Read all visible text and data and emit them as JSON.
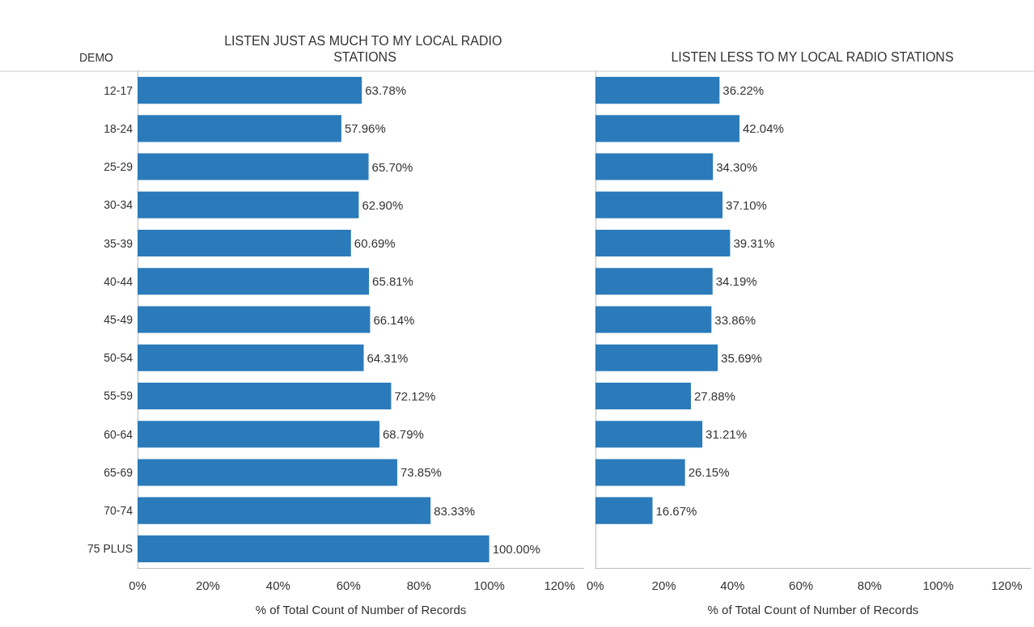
{
  "chart_data": [
    {
      "type": "bar",
      "orientation": "horizontal",
      "title": "LISTEN JUST AS MUCH TO MY LOCAL RADIO STATIONS",
      "ylabel": "DEMO",
      "xlabel": "% of Total Count of Number of Records",
      "categories": [
        "12-17",
        "18-24",
        "25-29",
        "30-34",
        "35-39",
        "40-44",
        "45-49",
        "50-54",
        "55-59",
        "60-64",
        "65-69",
        "70-74",
        "75 PLUS"
      ],
      "values": [
        63.78,
        57.96,
        65.7,
        62.9,
        60.69,
        65.81,
        66.14,
        64.31,
        72.12,
        68.79,
        73.85,
        83.33,
        100.0
      ],
      "value_labels": [
        "63.78%",
        "57.96%",
        "65.70%",
        "62.90%",
        "60.69%",
        "65.81%",
        "66.14%",
        "64.31%",
        "72.12%",
        "68.79%",
        "73.85%",
        "83.33%",
        "100.00%"
      ],
      "color": "#2b7bba",
      "xlim": [
        0,
        127
      ],
      "xticks": [
        {
          "value": 0,
          "label": "0%"
        },
        {
          "value": 20,
          "label": "20%"
        },
        {
          "value": 40,
          "label": "40%"
        },
        {
          "value": 60,
          "label": "60%"
        },
        {
          "value": 80,
          "label": "80%"
        },
        {
          "value": 100,
          "label": "100%"
        },
        {
          "value": 120,
          "label": "120%"
        }
      ],
      "grid": false
    },
    {
      "type": "bar",
      "orientation": "horizontal",
      "title": "LISTEN LESS TO MY LOCAL RADIO STATIONS",
      "xlabel": "% of Total Count of Number of Records",
      "categories": [
        null,
        null,
        null,
        null,
        null,
        null,
        null,
        null,
        null,
        null,
        null,
        null,
        null
      ],
      "values": [
        36.22,
        42.04,
        34.3,
        37.1,
        39.31,
        34.19,
        33.86,
        35.69,
        27.88,
        31.21,
        26.15,
        16.67,
        null
      ],
      "value_labels": [
        "36.22%",
        "42.04%",
        "34.30%",
        "37.10%",
        "39.31%",
        "34.19%",
        "33.86%",
        "35.69%",
        "27.88%",
        "31.21%",
        "26.15%",
        "16.67%",
        null
      ],
      "color": "#2b7bba",
      "xlim": [
        0,
        127
      ],
      "xticks": [
        {
          "value": 0,
          "label": "0%"
        },
        {
          "value": 20,
          "label": "20%"
        },
        {
          "value": 40,
          "label": "40%"
        },
        {
          "value": 60,
          "label": "60%"
        },
        {
          "value": 80,
          "label": "80%"
        },
        {
          "value": 100,
          "label": "100%"
        },
        {
          "value": 120,
          "label": "120%"
        }
      ],
      "grid": false
    }
  ]
}
